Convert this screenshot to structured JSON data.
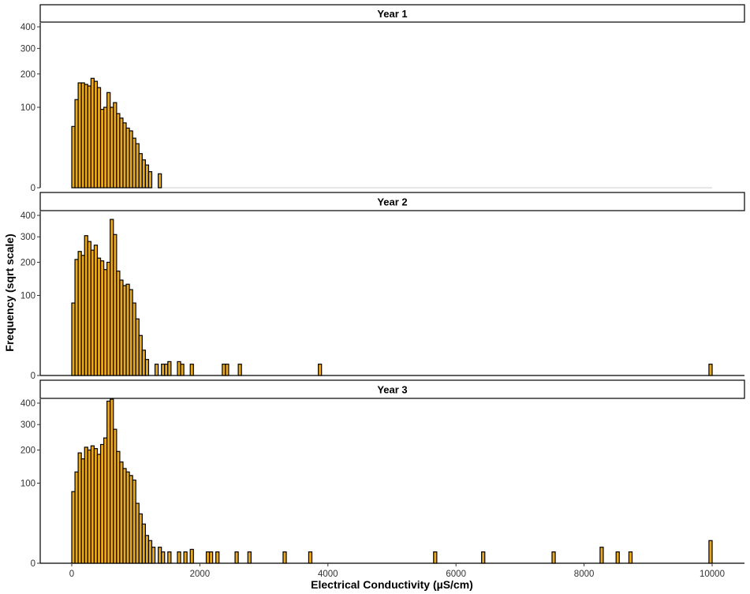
{
  "chart_data": {
    "type": "histogram",
    "facet": "strip_top",
    "xlabel": "Electrical Conductivity (µS/cm)",
    "ylabel": "Frequency (sqrt scale)",
    "y_scale": "sqrt",
    "xlim": [
      -1000,
      10500
    ],
    "ylim": [
      0,
      420
    ],
    "x_ticks": [
      0,
      2000,
      4000,
      6000,
      8000,
      10000
    ],
    "y_ticks": [
      0,
      100,
      200,
      300,
      400
    ],
    "bin_width": 50,
    "bar_color": "#E9A91E",
    "bar_outline": "#000000",
    "grid": false,
    "panels": [
      {
        "title": "Year 1",
        "bins": [
          {
            "x": 25,
            "y": 58
          },
          {
            "x": 75,
            "y": 120
          },
          {
            "x": 125,
            "y": 170
          },
          {
            "x": 175,
            "y": 170
          },
          {
            "x": 225,
            "y": 165
          },
          {
            "x": 275,
            "y": 160
          },
          {
            "x": 325,
            "y": 185
          },
          {
            "x": 375,
            "y": 175
          },
          {
            "x": 425,
            "y": 155
          },
          {
            "x": 475,
            "y": 95
          },
          {
            "x": 525,
            "y": 100
          },
          {
            "x": 575,
            "y": 140
          },
          {
            "x": 625,
            "y": 100
          },
          {
            "x": 675,
            "y": 112
          },
          {
            "x": 725,
            "y": 85
          },
          {
            "x": 775,
            "y": 75
          },
          {
            "x": 825,
            "y": 65
          },
          {
            "x": 875,
            "y": 55
          },
          {
            "x": 925,
            "y": 50
          },
          {
            "x": 975,
            "y": 38
          },
          {
            "x": 1025,
            "y": 30
          },
          {
            "x": 1075,
            "y": 18
          },
          {
            "x": 1125,
            "y": 12
          },
          {
            "x": 1175,
            "y": 8
          },
          {
            "x": 1225,
            "y": 4
          },
          {
            "x": 1375,
            "y": 3
          }
        ]
      },
      {
        "title": "Year 2",
        "bins": [
          {
            "x": 25,
            "y": 82
          },
          {
            "x": 75,
            "y": 210
          },
          {
            "x": 125,
            "y": 240
          },
          {
            "x": 175,
            "y": 225
          },
          {
            "x": 225,
            "y": 305
          },
          {
            "x": 275,
            "y": 280
          },
          {
            "x": 325,
            "y": 245
          },
          {
            "x": 375,
            "y": 265
          },
          {
            "x": 425,
            "y": 215
          },
          {
            "x": 475,
            "y": 205
          },
          {
            "x": 525,
            "y": 175
          },
          {
            "x": 575,
            "y": 200
          },
          {
            "x": 625,
            "y": 380
          },
          {
            "x": 675,
            "y": 310
          },
          {
            "x": 725,
            "y": 170
          },
          {
            "x": 775,
            "y": 142
          },
          {
            "x": 825,
            "y": 126
          },
          {
            "x": 875,
            "y": 130
          },
          {
            "x": 925,
            "y": 115
          },
          {
            "x": 975,
            "y": 82
          },
          {
            "x": 1025,
            "y": 50
          },
          {
            "x": 1075,
            "y": 25
          },
          {
            "x": 1125,
            "y": 10
          },
          {
            "x": 1175,
            "y": 4
          },
          {
            "x": 1325,
            "y": 2
          },
          {
            "x": 1425,
            "y": 2
          },
          {
            "x": 1475,
            "y": 2
          },
          {
            "x": 1525,
            "y": 3
          },
          {
            "x": 1675,
            "y": 3
          },
          {
            "x": 1725,
            "y": 2
          },
          {
            "x": 1875,
            "y": 2
          },
          {
            "x": 2375,
            "y": 2
          },
          {
            "x": 2425,
            "y": 2
          },
          {
            "x": 2625,
            "y": 2
          },
          {
            "x": 3875,
            "y": 2
          },
          {
            "x": 9975,
            "y": 2
          }
        ]
      },
      {
        "title": "Year 3",
        "bins": [
          {
            "x": 25,
            "y": 80
          },
          {
            "x": 75,
            "y": 130
          },
          {
            "x": 125,
            "y": 190
          },
          {
            "x": 175,
            "y": 170
          },
          {
            "x": 225,
            "y": 210
          },
          {
            "x": 275,
            "y": 200
          },
          {
            "x": 325,
            "y": 215
          },
          {
            "x": 375,
            "y": 205
          },
          {
            "x": 425,
            "y": 185
          },
          {
            "x": 475,
            "y": 220
          },
          {
            "x": 525,
            "y": 245
          },
          {
            "x": 575,
            "y": 410
          },
          {
            "x": 625,
            "y": 420
          },
          {
            "x": 675,
            "y": 280
          },
          {
            "x": 725,
            "y": 195
          },
          {
            "x": 775,
            "y": 160
          },
          {
            "x": 825,
            "y": 140
          },
          {
            "x": 875,
            "y": 130
          },
          {
            "x": 925,
            "y": 120
          },
          {
            "x": 975,
            "y": 108
          },
          {
            "x": 1025,
            "y": 56
          },
          {
            "x": 1075,
            "y": 38
          },
          {
            "x": 1125,
            "y": 24
          },
          {
            "x": 1175,
            "y": 12
          },
          {
            "x": 1225,
            "y": 8
          },
          {
            "x": 1275,
            "y": 4
          },
          {
            "x": 1375,
            "y": 4
          },
          {
            "x": 1425,
            "y": 2
          },
          {
            "x": 1525,
            "y": 2
          },
          {
            "x": 1675,
            "y": 2
          },
          {
            "x": 1775,
            "y": 2
          },
          {
            "x": 1875,
            "y": 3
          },
          {
            "x": 2125,
            "y": 2
          },
          {
            "x": 2175,
            "y": 2
          },
          {
            "x": 2275,
            "y": 2
          },
          {
            "x": 2575,
            "y": 2
          },
          {
            "x": 2775,
            "y": 2
          },
          {
            "x": 3325,
            "y": 2
          },
          {
            "x": 3725,
            "y": 2
          },
          {
            "x": 5675,
            "y": 2
          },
          {
            "x": 6425,
            "y": 2
          },
          {
            "x": 7525,
            "y": 2
          },
          {
            "x": 8275,
            "y": 4
          },
          {
            "x": 8525,
            "y": 2
          },
          {
            "x": 8725,
            "y": 2
          },
          {
            "x": 9975,
            "y": 8
          }
        ]
      }
    ]
  }
}
